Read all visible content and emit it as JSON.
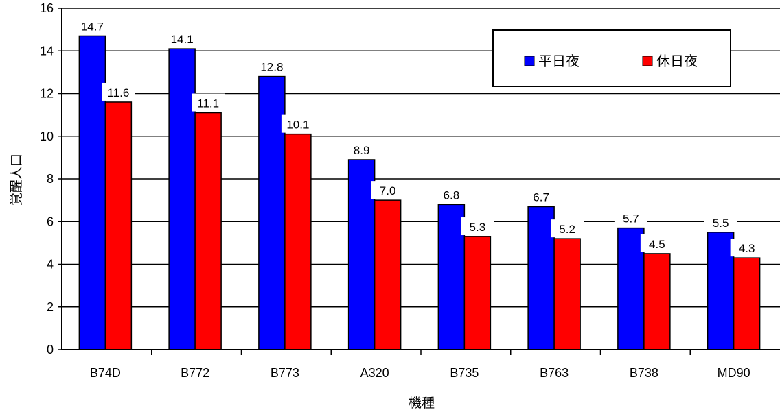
{
  "chart_data": {
    "type": "bar",
    "categories": [
      "B74D",
      "B772",
      "B773",
      "A320",
      "B735",
      "B763",
      "B738",
      "MD90"
    ],
    "series": [
      {
        "name": "平日夜",
        "color": "#0000ff",
        "values": [
          14.7,
          14.1,
          12.8,
          8.9,
          6.8,
          6.7,
          5.7,
          5.5
        ]
      },
      {
        "name": "休日夜",
        "color": "#ff0000",
        "values": [
          11.6,
          11.1,
          10.1,
          7.0,
          5.3,
          5.2,
          4.5,
          4.3
        ]
      }
    ],
    "xlabel": "機種",
    "ylabel": "覚醒人口",
    "ylim": [
      0,
      16
    ],
    "yticks": [
      0,
      2,
      4,
      6,
      8,
      10,
      12,
      14,
      16
    ],
    "grid": true,
    "legend_position": "top-right"
  }
}
